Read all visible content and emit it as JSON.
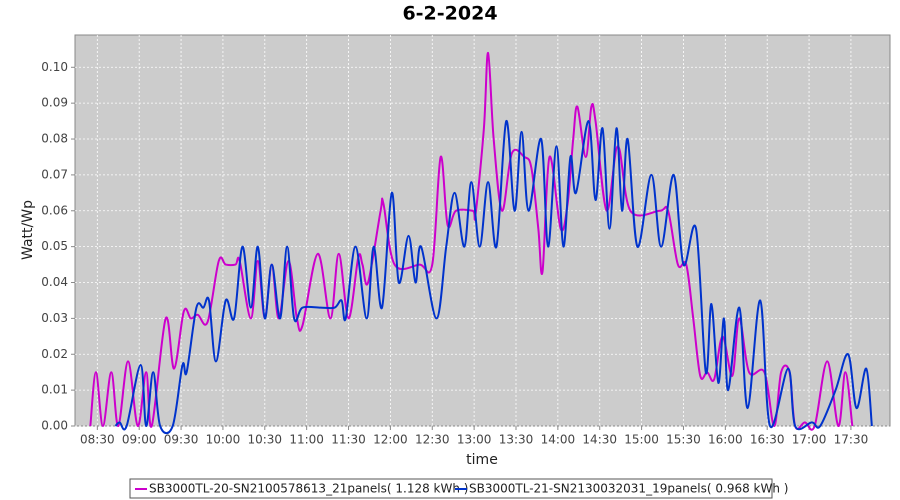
{
  "chart_data": {
    "type": "line",
    "title": "6-2-2024",
    "x_label": "time",
    "y_label": "Watt/Wp",
    "xlim": [
      "08:14",
      "17:58"
    ],
    "xticks": [
      "08:30",
      "09:00",
      "09:30",
      "10:00",
      "10:30",
      "11:00",
      "11:30",
      "12:00",
      "12:30",
      "13:00",
      "13:30",
      "14:00",
      "14:30",
      "15:00",
      "15:30",
      "16:00",
      "16:30",
      "17:00",
      "17:30"
    ],
    "ylim": [
      0,
      0.109
    ],
    "yticks": [
      {
        "value": 0,
        "label": "0.00"
      },
      {
        "value": 0.01,
        "label": "0.01"
      },
      {
        "value": 0.02,
        "label": "0.02"
      },
      {
        "value": 0.03,
        "label": "0.03"
      },
      {
        "value": 0.04,
        "label": "0.04"
      },
      {
        "value": 0.05,
        "label": "0.05"
      },
      {
        "value": 0.06,
        "label": "0.06"
      },
      {
        "value": 0.07,
        "label": "0.07"
      },
      {
        "value": 0.08,
        "label": "0.08"
      },
      {
        "value": 0.09,
        "label": "0.09"
      },
      {
        "value": 0.1,
        "label": "0.10"
      }
    ],
    "grid": true,
    "legend": "bottom",
    "series": [
      {
        "name": "SB3000TL-20-SN2100578613_21panels( 1.128 kWh )",
        "color": "#cc00cc",
        "x": [
          "08:25",
          "08:29",
          "08:34",
          "08:40",
          "08:45",
          "08:52",
          "08:59",
          "09:05",
          "09:09",
          "09:19",
          "09:25",
          "09:32",
          "09:37",
          "09:42",
          "09:49",
          "09:57",
          "10:02",
          "10:09",
          "10:12",
          "10:20",
          "10:25",
          "10:30",
          "10:35",
          "10:40",
          "10:47",
          "10:53",
          "10:57",
          "11:08",
          "11:17",
          "11:23",
          "11:30",
          "11:37",
          "11:40",
          "11:44",
          "11:53",
          "11:55",
          "12:03",
          "12:21",
          "12:30",
          "12:36",
          "12:41",
          "12:47",
          "12:59",
          "13:01",
          "13:07",
          "13:10",
          "13:14",
          "13:20",
          "13:27",
          "13:36",
          "13:41",
          "13:46",
          "13:49",
          "13:54",
          "14:02",
          "14:07",
          "14:11",
          "14:14",
          "14:20",
          "14:24",
          "14:27",
          "14:35",
          "14:43",
          "14:52",
          "15:13",
          "15:19",
          "15:26",
          "15:32",
          "15:37",
          "15:42",
          "15:47",
          "15:52",
          "15:58",
          "16:05",
          "16:10",
          "16:17",
          "16:28",
          "16:35",
          "16:40",
          "16:46",
          "16:50",
          "16:57",
          "17:04",
          "17:13",
          "17:21",
          "17:26",
          "17:31"
        ],
        "values": [
          0,
          0.015,
          0,
          0.015,
          0,
          0.018,
          0,
          0.015,
          0,
          0.03,
          0.016,
          0.032,
          0.03,
          0.031,
          0.029,
          0.046,
          0.045,
          0.045,
          0.046,
          0.03,
          0.046,
          0.03,
          0.045,
          0.03,
          0.046,
          0.03,
          0.028,
          0.048,
          0.03,
          0.048,
          0.03,
          0.047,
          0.045,
          0.04,
          0.06,
          0.062,
          0.045,
          0.045,
          0.045,
          0.075,
          0.056,
          0.06,
          0.06,
          0.059,
          0.083,
          0.104,
          0.08,
          0.06,
          0.076,
          0.075,
          0.072,
          0.055,
          0.043,
          0.075,
          0.055,
          0.062,
          0.08,
          0.089,
          0.075,
          0.089,
          0.085,
          0.06,
          0.078,
          0.06,
          0.06,
          0.06,
          0.045,
          0.045,
          0.03,
          0.014,
          0.015,
          0.013,
          0.025,
          0.014,
          0.03,
          0.015,
          0.015,
          0,
          0.015,
          0.015,
          0,
          0.001,
          0,
          0.018,
          0,
          0.015,
          0
        ]
      },
      {
        "name": "SB3000TL-21-SN2130032031_19panels( 0.968 kWh )",
        "color": "#0033cc",
        "x": [
          "08:43",
          "08:46",
          "08:51",
          "09:01",
          "09:05",
          "09:10",
          "09:15",
          "09:24",
          "09:31",
          "09:34",
          "09:41",
          "09:46",
          "09:50",
          "09:55",
          "10:02",
          "10:08",
          "10:14",
          "10:20",
          "10:25",
          "10:30",
          "10:35",
          "10:41",
          "10:46",
          "10:51",
          "10:57",
          "11:10",
          "11:20",
          "11:25",
          "11:28",
          "11:35",
          "11:43",
          "11:48",
          "11:54",
          "12:01",
          "12:06",
          "12:13",
          "12:18",
          "12:22",
          "12:33",
          "12:40",
          "12:46",
          "12:53",
          "12:58",
          "13:04",
          "13:10",
          "13:16",
          "13:23",
          "13:29",
          "13:34",
          "13:39",
          "13:48",
          "13:53",
          "13:59",
          "14:04",
          "14:09",
          "14:13",
          "14:22",
          "14:27",
          "14:32",
          "14:37",
          "14:42",
          "14:46",
          "14:50",
          "14:57",
          "15:07",
          "15:14",
          "15:23",
          "15:30",
          "15:39",
          "15:46",
          "15:50",
          "15:55",
          "15:59",
          "16:02",
          "16:10",
          "16:16",
          "16:25",
          "16:32",
          "16:45",
          "16:50",
          "17:02",
          "17:08",
          "17:19",
          "17:28",
          "17:34",
          "17:41",
          "17:45"
        ],
        "values": [
          0,
          0.001,
          0,
          0.017,
          0,
          0.015,
          0,
          0,
          0.017,
          0.015,
          0.033,
          0.033,
          0.035,
          0.018,
          0.035,
          0.03,
          0.05,
          0.033,
          0.05,
          0.03,
          0.045,
          0.03,
          0.05,
          0.03,
          0.033,
          0.033,
          0.033,
          0.035,
          0.03,
          0.05,
          0.03,
          0.05,
          0.033,
          0.065,
          0.04,
          0.053,
          0.04,
          0.05,
          0.03,
          0.05,
          0.065,
          0.05,
          0.068,
          0.05,
          0.068,
          0.05,
          0.085,
          0.06,
          0.082,
          0.06,
          0.08,
          0.05,
          0.078,
          0.05,
          0.075,
          0.065,
          0.085,
          0.063,
          0.083,
          0.055,
          0.083,
          0.06,
          0.08,
          0.05,
          0.07,
          0.05,
          0.07,
          0.045,
          0.055,
          0.015,
          0.034,
          0.012,
          0.03,
          0.01,
          0.033,
          0.005,
          0.035,
          0,
          0.016,
          0,
          0.001,
          0,
          0.01,
          0.02,
          0.005,
          0.016,
          0
        ]
      }
    ]
  }
}
